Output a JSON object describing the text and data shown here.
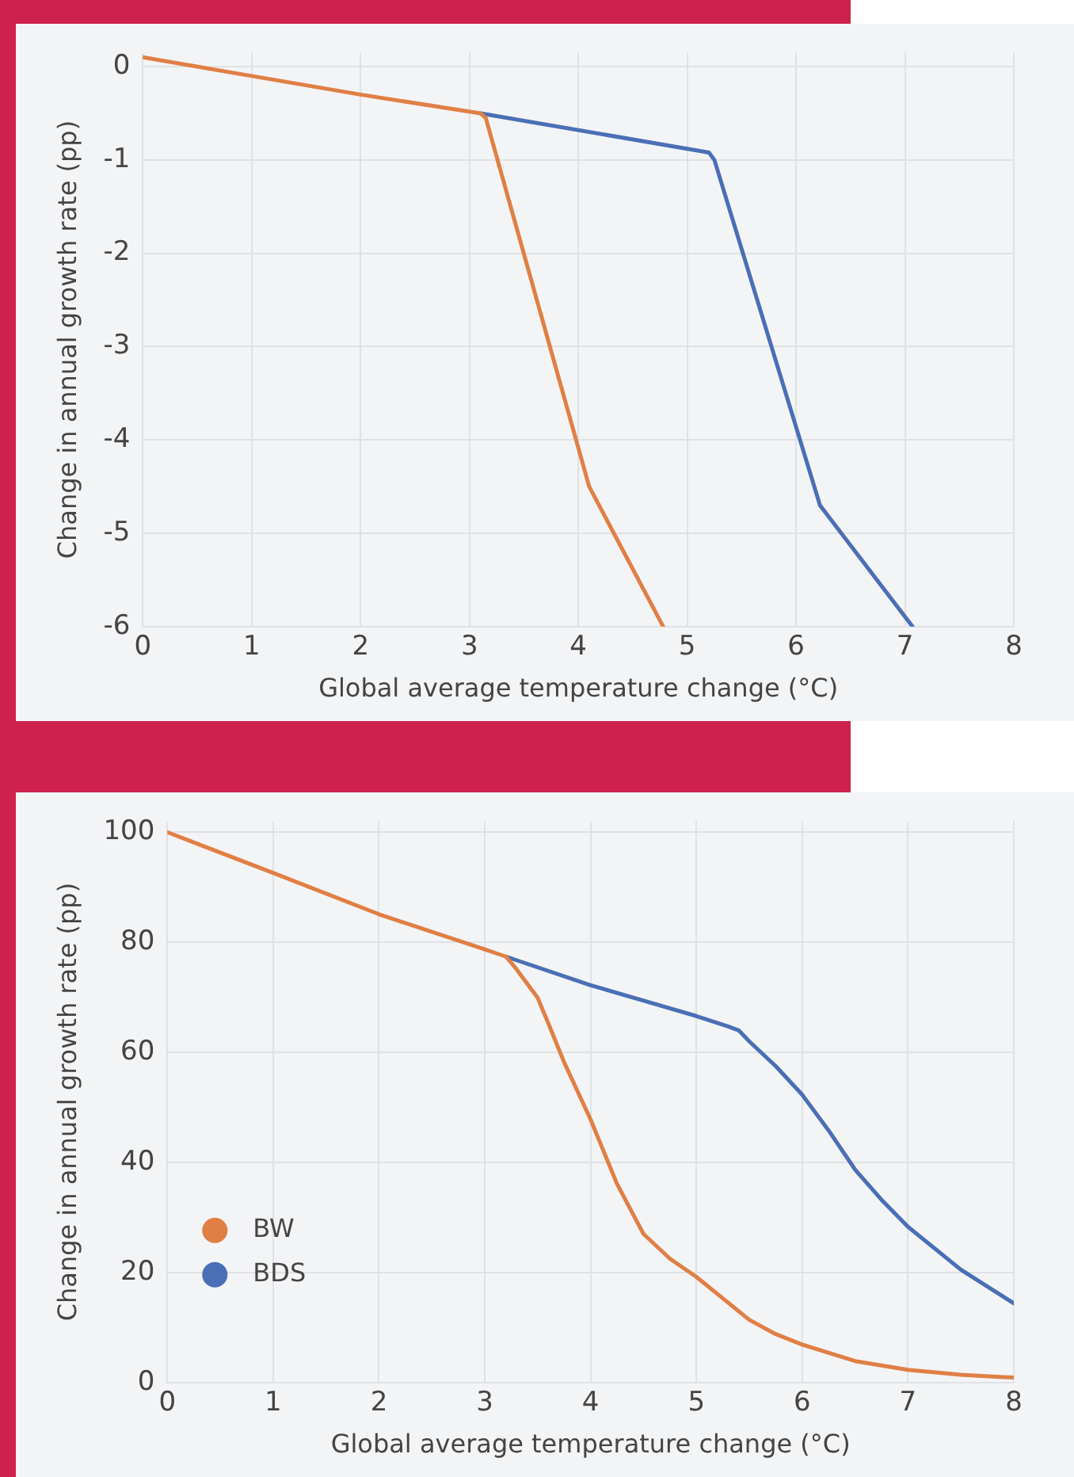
{
  "chart_data": [
    {
      "type": "line",
      "xlabel": "Global average temperature change (°C)",
      "ylabel": "Change in annual growth rate (pp)",
      "xlim": [
        0,
        8
      ],
      "xticks": [
        0,
        1,
        2,
        3,
        4,
        5,
        6,
        7,
        8
      ],
      "ylim": [
        -6,
        0.15
      ],
      "yticks": [
        -6,
        -5,
        -4,
        -3,
        -2,
        -1,
        0
      ],
      "grid": true,
      "marker": "none",
      "line_style": "solid",
      "series": [
        {
          "color": "#e07f45",
          "x": [
            0,
            1,
            2,
            3.1,
            3.15,
            4.1,
            4.78
          ],
          "values": [
            0.1,
            -0.1,
            -0.3,
            -0.5,
            -0.55,
            -4.5,
            -6
          ]
        },
        {
          "color": "#4a6fb5",
          "x": [
            3.1,
            5.2,
            5.25,
            6.22,
            7.07
          ],
          "values": [
            -0.5,
            -0.92,
            -1.0,
            -4.7,
            -6
          ]
        }
      ]
    },
    {
      "type": "line",
      "xlabel": "Global average temperature change (°C)",
      "ylabel": "Change in annual growth rate (pp)",
      "xlim": [
        0,
        8
      ],
      "xticks": [
        0,
        1,
        2,
        3,
        4,
        5,
        6,
        7,
        8
      ],
      "ylim": [
        0,
        102
      ],
      "yticks": [
        0,
        20,
        40,
        60,
        80,
        100
      ],
      "grid": true,
      "marker": "none",
      "line_style": "solid",
      "legend": "bottom left",
      "series": [
        {
          "name": "BW",
          "color": "#e07f45",
          "x": [
            0,
            1,
            2,
            3,
            3.2,
            3.3,
            3.5,
            3.6,
            3.75,
            4,
            4.25,
            4.5,
            4.75,
            5,
            5.5,
            5.75,
            6,
            6.5,
            7,
            7.5,
            8
          ],
          "values": [
            100,
            92.6,
            85.1,
            78.7,
            77.4,
            75.1,
            69.9,
            65.3,
            58.2,
            47.8,
            36.1,
            27,
            22.5,
            19.2,
            11.4,
            8.8,
            6.9,
            3.9,
            2.3,
            1.4,
            0.9
          ]
        },
        {
          "name": "BDS",
          "color": "#4a6fb5",
          "x": [
            3.2,
            4,
            5,
            5.3,
            5.4,
            5.5,
            5.75,
            6,
            6.25,
            6.5,
            6.75,
            7,
            7.5,
            8
          ],
          "values": [
            77.4,
            72.2,
            66.6,
            64.7,
            64,
            62,
            57.5,
            52.3,
            45.8,
            38.7,
            33.2,
            28.3,
            20.5,
            14.4
          ]
        }
      ]
    }
  ]
}
